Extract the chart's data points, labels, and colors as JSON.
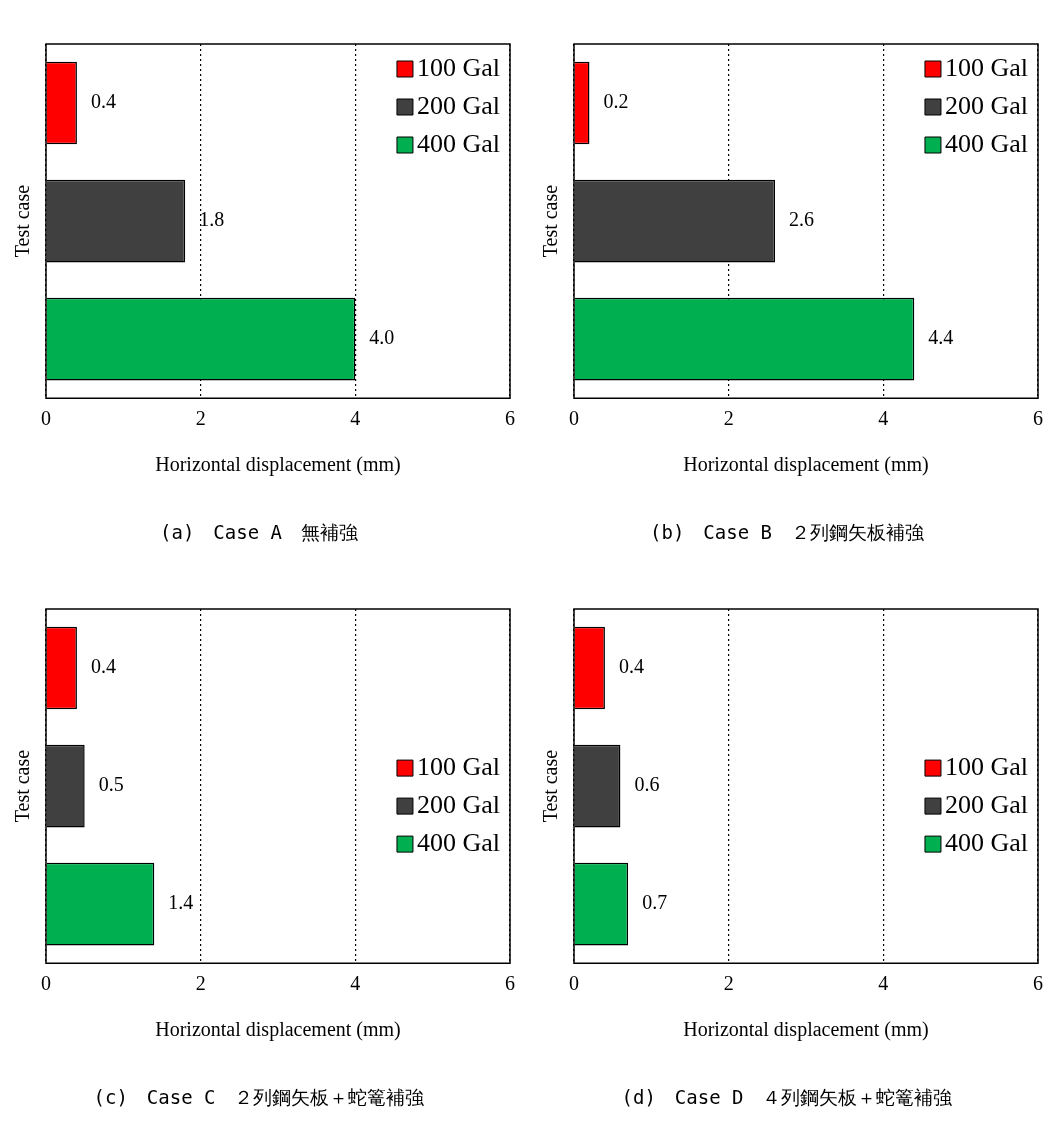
{
  "chart_data": [
    {
      "type": "bar",
      "orientation": "horizontal",
      "title": "(a)　Case A　無補強",
      "xlabel": "Horizontal displacement (mm)",
      "ylabel": "Test case",
      "categories": [
        null,
        null,
        null
      ],
      "xlim": [
        0,
        6
      ],
      "xticks": [
        0,
        2,
        4,
        6
      ],
      "grid": "x",
      "legend": "top right",
      "series": [
        {
          "name": "100 Gal",
          "color": "#ff0000",
          "values": [
            0.4,
            null,
            null
          ],
          "value_labels": [
            "0.4",
            null,
            null
          ]
        },
        {
          "name": "200 Gal",
          "color": "#404040",
          "values": [
            null,
            1.8,
            null
          ],
          "value_labels": [
            null,
            "1.8",
            null
          ]
        },
        {
          "name": "400 Gal",
          "color": "#00b050",
          "values": [
            null,
            null,
            4.0
          ],
          "value_labels": [
            null,
            null,
            "4.0"
          ]
        }
      ]
    },
    {
      "type": "bar",
      "orientation": "horizontal",
      "title": "(b)　Case B　２列鋼矢板補強",
      "xlabel": "Horizontal displacement (mm)",
      "ylabel": "Test case",
      "categories": [
        null,
        null,
        null
      ],
      "xlim": [
        0,
        6
      ],
      "xticks": [
        0,
        2,
        4,
        6
      ],
      "grid": "x",
      "legend": "top right",
      "series": [
        {
          "name": "100 Gal",
          "color": "#ff0000",
          "values": [
            0.2,
            null,
            null
          ],
          "value_labels": [
            "0.2",
            null,
            null
          ]
        },
        {
          "name": "200 Gal",
          "color": "#404040",
          "values": [
            null,
            2.6,
            null
          ],
          "value_labels": [
            null,
            "2.6",
            null
          ]
        },
        {
          "name": "400 Gal",
          "color": "#00b050",
          "values": [
            null,
            null,
            4.4
          ],
          "value_labels": [
            null,
            null,
            "4.4"
          ]
        }
      ]
    },
    {
      "type": "bar",
      "orientation": "horizontal",
      "title": "(c)　Case C　２列鋼矢板＋蛇篭補強",
      "xlabel": "Horizontal displacement (mm)",
      "ylabel": "Test case",
      "categories": [
        null,
        null,
        null
      ],
      "xlim": [
        0,
        6
      ],
      "xticks": [
        0,
        2,
        4,
        6
      ],
      "grid": "x",
      "legend": "right",
      "series": [
        {
          "name": "100 Gal",
          "color": "#ff0000",
          "values": [
            0.4,
            null,
            null
          ],
          "value_labels": [
            "0.4",
            null,
            null
          ]
        },
        {
          "name": "200 Gal",
          "color": "#404040",
          "values": [
            null,
            0.5,
            null
          ],
          "value_labels": [
            null,
            "0.5",
            null
          ]
        },
        {
          "name": "400 Gal",
          "color": "#00b050",
          "values": [
            null,
            null,
            1.4
          ],
          "value_labels": [
            null,
            null,
            "1.4"
          ]
        }
      ]
    },
    {
      "type": "bar",
      "orientation": "horizontal",
      "title": "(d)　Case D　４列鋼矢板＋蛇篭補強",
      "xlabel": "Horizontal displacement (mm)",
      "ylabel": "Test case",
      "categories": [
        null,
        null,
        null
      ],
      "xlim": [
        0,
        6
      ],
      "xticks": [
        0,
        2,
        4,
        6
      ],
      "grid": "x",
      "legend": "right",
      "series": [
        {
          "name": "100 Gal",
          "color": "#ff0000",
          "values": [
            0.4,
            null,
            null
          ],
          "value_labels": [
            "0.4",
            null,
            null
          ]
        },
        {
          "name": "200 Gal",
          "color": "#404040",
          "values": [
            null,
            0.6,
            null
          ],
          "value_labels": [
            null,
            "0.6",
            null
          ]
        },
        {
          "name": "400 Gal",
          "color": "#00b050",
          "values": [
            null,
            null,
            0.7
          ],
          "value_labels": [
            null,
            null,
            "0.7"
          ]
        }
      ]
    }
  ]
}
